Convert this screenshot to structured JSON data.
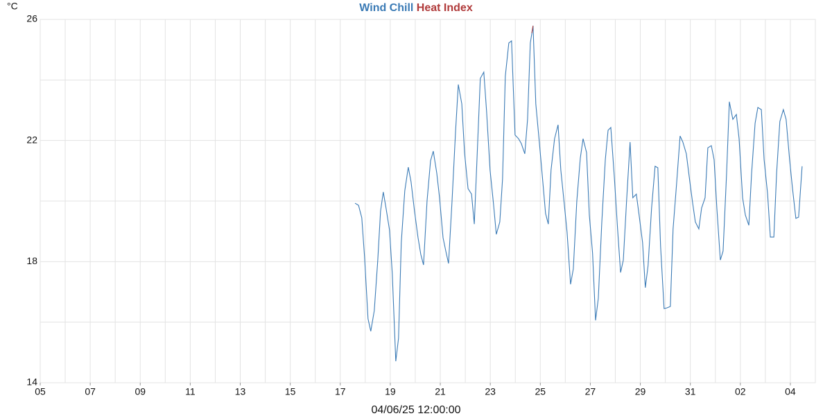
{
  "chart_data": {
    "type": "line",
    "y_label": "°C",
    "x_label": "04/06/25 12:00:00",
    "xlim": [
      0,
      31
    ],
    "xticks": [
      {
        "value": 0,
        "label": "05"
      },
      {
        "value": 2,
        "label": "07"
      },
      {
        "value": 4,
        "label": "09"
      },
      {
        "value": 6,
        "label": "11"
      },
      {
        "value": 8,
        "label": "13"
      },
      {
        "value": 10,
        "label": "15"
      },
      {
        "value": 12,
        "label": "17"
      },
      {
        "value": 14,
        "label": "19"
      },
      {
        "value": 16,
        "label": "21"
      },
      {
        "value": 18,
        "label": "23"
      },
      {
        "value": 20,
        "label": "25"
      },
      {
        "value": 22,
        "label": "27"
      },
      {
        "value": 24,
        "label": "29"
      },
      {
        "value": 26,
        "label": "31"
      },
      {
        "value": 28,
        "label": "02"
      },
      {
        "value": 30,
        "label": "04"
      }
    ],
    "xminor": [
      1,
      3,
      5,
      7,
      9,
      11,
      13,
      15,
      17,
      19,
      21,
      23,
      25,
      27,
      29
    ],
    "ylim": [
      14,
      26
    ],
    "yticks": [
      14,
      18,
      22,
      26
    ],
    "yminor": [
      16,
      20,
      24
    ],
    "grid": true,
    "series": [
      {
        "name": "Wind Chill",
        "color": "#3a7ab5",
        "x": [
          12.59,
          12.73,
          12.86,
          12.97,
          13.11,
          13.22,
          13.36,
          13.5,
          13.61,
          13.72,
          13.83,
          13.97,
          14.08,
          14.22,
          14.33,
          14.44,
          14.58,
          14.72,
          14.83,
          14.97,
          15.11,
          15.22,
          15.33,
          15.47,
          15.61,
          15.72,
          15.86,
          15.97,
          16.11,
          16.22,
          16.33,
          16.47,
          16.61,
          16.72,
          16.86,
          16.97,
          17.11,
          17.25,
          17.36,
          17.49,
          17.6,
          17.74,
          17.85,
          17.99,
          18.13,
          18.24,
          18.38,
          18.49,
          18.6,
          18.74,
          18.85,
          18.99,
          19.13,
          19.24,
          19.38,
          19.49,
          19.6,
          19.71,
          19.82,
          19.96,
          20.1,
          20.21,
          20.32,
          20.43,
          20.57,
          20.71,
          20.82,
          20.96,
          21.07,
          21.21,
          21.32,
          21.46,
          21.6,
          21.71,
          21.85,
          21.96,
          22.09,
          22.21,
          22.32,
          22.46,
          22.6,
          22.71,
          22.82,
          22.96,
          23.09,
          23.21,
          23.32,
          23.45,
          23.59,
          23.7,
          23.84,
          23.95,
          24.09,
          24.2,
          24.31,
          24.45,
          24.59,
          24.7,
          24.81,
          24.95,
          25.06,
          25.2,
          25.31,
          25.45,
          25.59,
          25.7,
          25.84,
          25.98,
          26.09,
          26.2,
          26.34,
          26.45,
          26.59,
          26.7,
          26.84,
          26.95,
          27.06,
          27.2,
          27.31,
          27.45,
          27.56,
          27.7,
          27.84,
          27.95,
          28.09,
          28.2,
          28.34,
          28.45,
          28.59,
          28.7,
          28.84,
          28.95,
          29.09,
          29.2,
          29.34,
          29.45,
          29.58,
          29.72,
          29.83,
          29.97,
          30.08,
          30.22,
          30.33,
          30.47
        ],
        "values": [
          19.93,
          19.86,
          19.45,
          18.17,
          16.11,
          15.7,
          16.38,
          18.05,
          19.66,
          20.3,
          19.77,
          19.04,
          17.6,
          14.71,
          15.47,
          18.63,
          20.34,
          21.12,
          20.64,
          19.66,
          18.79,
          18.24,
          17.89,
          20.0,
          21.33,
          21.65,
          20.92,
          20.11,
          18.79,
          18.35,
          17.94,
          20.0,
          22.29,
          23.85,
          23.21,
          21.6,
          20.41,
          20.23,
          19.24,
          21.83,
          24.05,
          24.26,
          22.98,
          21.03,
          19.89,
          18.9,
          19.31,
          20.73,
          24.12,
          25.22,
          25.29,
          22.18,
          22.06,
          21.9,
          21.56,
          22.7,
          25.22,
          25.79,
          23.21,
          21.95,
          20.64,
          19.59,
          19.24,
          21.03,
          22.06,
          22.52,
          21.03,
          19.89,
          18.97,
          17.25,
          17.76,
          20.0,
          21.42,
          22.06,
          21.6,
          19.54,
          18.28,
          16.06,
          16.79,
          19.31,
          21.37,
          22.34,
          22.43,
          20.8,
          19.08,
          17.64,
          18.05,
          20.0,
          21.95,
          20.11,
          20.23,
          19.54,
          18.63,
          17.14,
          17.87,
          19.77,
          21.15,
          21.1,
          18.51,
          16.45,
          16.47,
          16.52,
          19.08,
          20.57,
          22.15,
          21.95,
          21.56,
          20.64,
          19.95,
          19.31,
          19.08,
          19.77,
          20.11,
          21.76,
          21.83,
          21.37,
          19.77,
          18.05,
          18.35,
          20.92,
          23.28,
          22.7,
          22.86,
          22.06,
          20.11,
          19.54,
          19.2,
          20.92,
          22.57,
          23.09,
          23.02,
          21.37,
          20.23,
          18.81,
          18.81,
          20.92,
          22.63,
          23.02,
          22.7,
          21.37,
          20.46,
          19.43,
          19.47,
          21.15
        ]
      },
      {
        "name": "Heat Index",
        "color": "#b03a3a",
        "x": [
          19.66,
          19.71
        ],
        "values": [
          25.55,
          25.79
        ]
      }
    ]
  }
}
